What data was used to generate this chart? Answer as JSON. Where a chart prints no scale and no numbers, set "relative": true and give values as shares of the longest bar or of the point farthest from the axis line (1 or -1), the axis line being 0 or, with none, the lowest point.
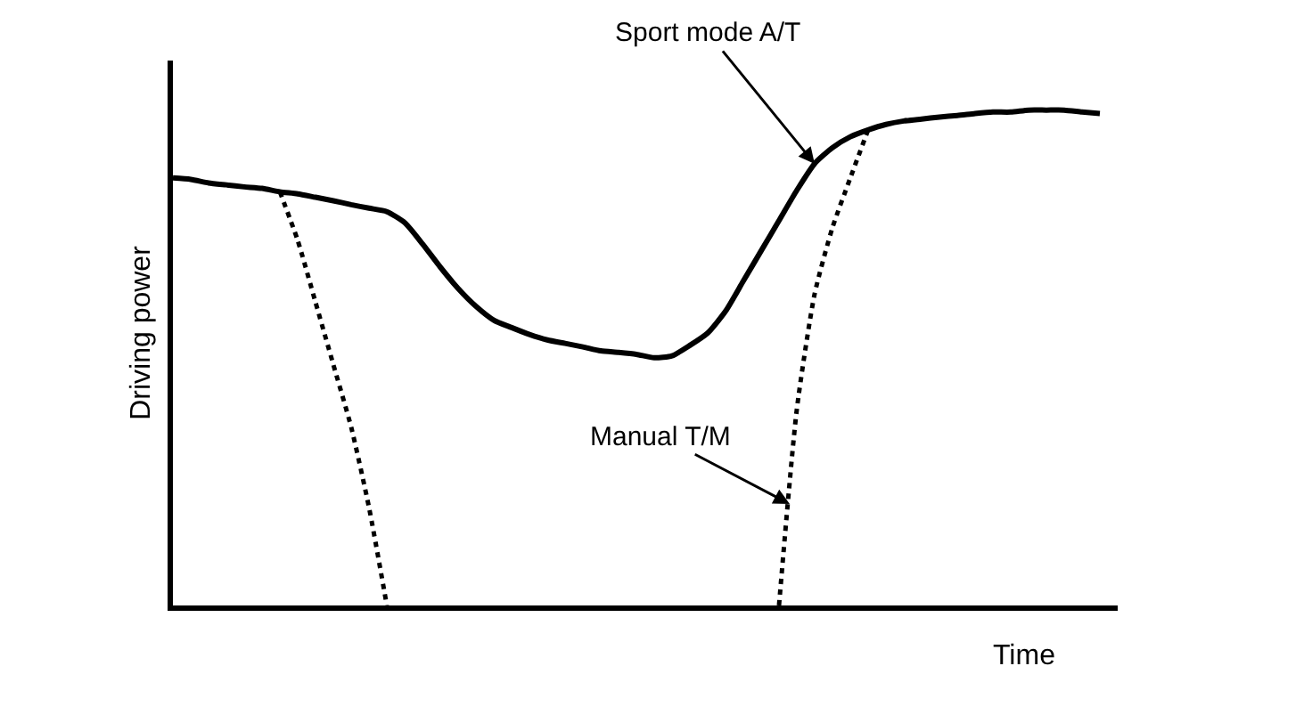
{
  "chart_data": {
    "type": "line",
    "relative": true,
    "xlabel": "Time",
    "ylabel": "Driving power",
    "legend": false,
    "marker": "none",
    "categories": [
      null,
      null,
      null,
      null,
      null,
      null,
      null,
      null,
      null,
      null,
      null,
      null,
      null,
      null,
      null,
      null,
      null,
      null,
      null,
      null,
      null,
      null,
      null,
      null,
      null,
      null,
      null,
      null,
      null,
      null,
      null,
      null,
      null,
      null,
      null,
      null,
      null,
      null,
      null,
      null,
      null,
      null,
      null,
      null,
      null,
      null,
      null,
      null,
      null,
      null,
      null,
      null,
      null
    ],
    "series": [
      {
        "name": "Sport mode A/T",
        "color": "#000000",
        "line_style": "solid",
        "values": [
          0.863,
          0.86,
          0.853,
          0.849,
          0.845,
          0.842,
          0.835,
          0.831,
          0.824,
          0.817,
          0.809,
          0.802,
          0.795,
          0.773,
          0.73,
          0.683,
          0.64,
          0.604,
          0.576,
          0.561,
          0.547,
          0.536,
          0.529,
          0.522,
          0.514,
          0.511,
          0.507,
          0.5,
          0.504,
          0.525,
          0.55,
          0.594,
          0.655,
          0.716,
          0.777,
          0.838,
          0.892,
          0.924,
          0.946,
          0.96,
          0.971,
          0.978,
          0.982,
          0.986,
          0.989,
          0.993,
          0.996,
          0.996,
          1,
          1,
          1,
          0.996,
          0.993
        ]
      },
      {
        "name": "Manual T/M",
        "color": "#000000",
        "line_style": "dotted",
        "values": [
          null,
          null,
          null,
          null,
          null,
          null,
          0.835,
          0.737,
          0.612,
          0.486,
          0.36,
          0.198,
          0,
          null,
          null,
          null,
          null,
          null,
          null,
          null,
          null,
          null,
          null,
          null,
          null,
          null,
          null,
          null,
          null,
          null,
          null,
          null,
          null,
          null,
          0,
          0.396,
          0.629,
          0.763,
          0.863,
          0.96,
          null,
          null,
          null,
          null,
          null,
          null,
          null,
          null,
          null,
          null,
          null,
          null,
          null
        ]
      }
    ]
  }
}
